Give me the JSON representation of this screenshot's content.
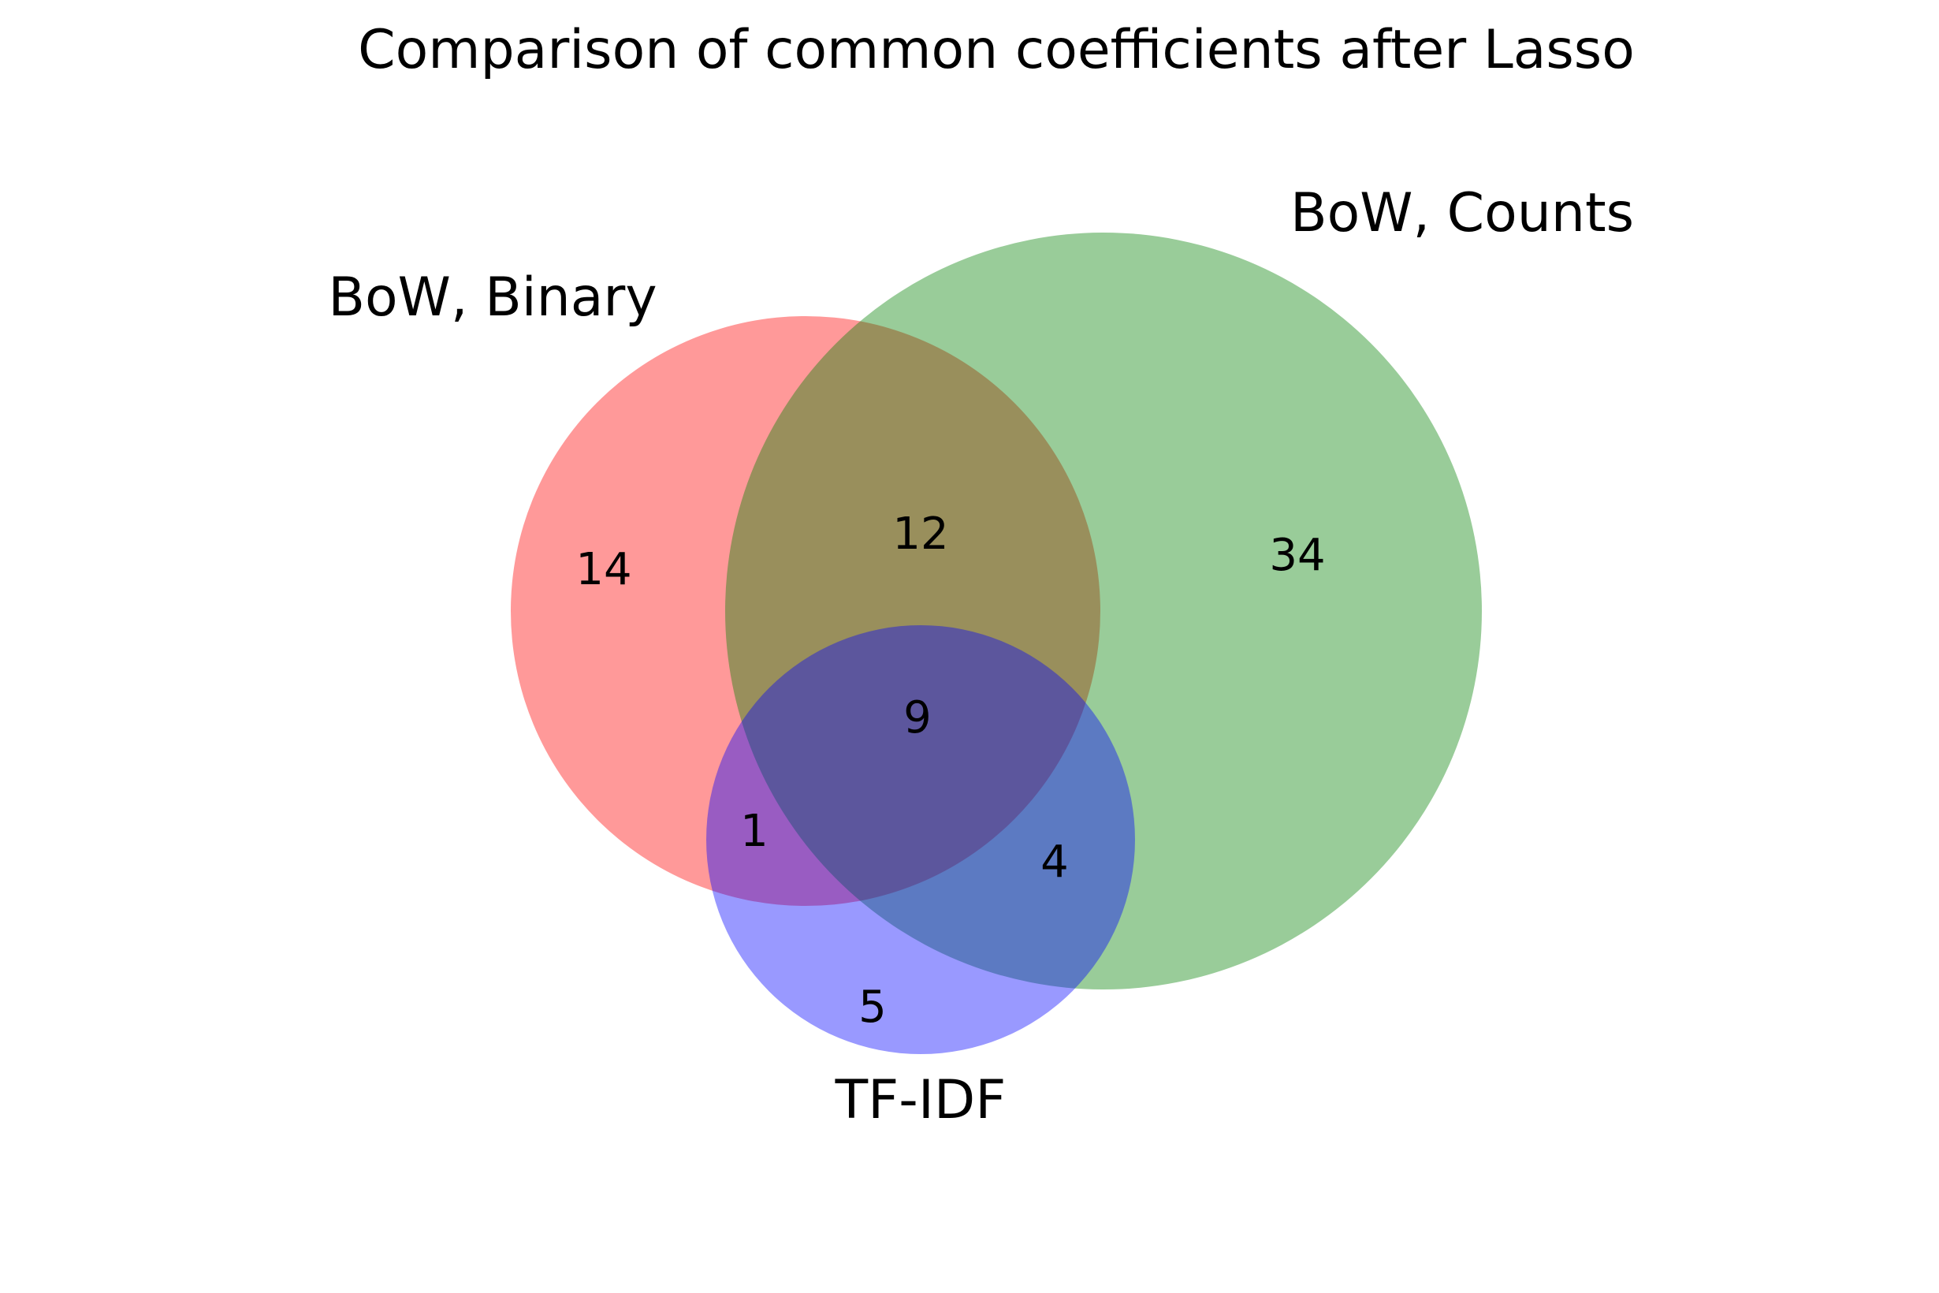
{
  "chart_data": {
    "type": "venn",
    "title": "Comparison of common coefficients after Lasso",
    "sets": [
      {
        "id": "binary",
        "name": "BoW, Binary",
        "color": "#ff0000",
        "alpha": 0.4
      },
      {
        "id": "counts",
        "name": "BoW, Counts",
        "color": "#008000",
        "alpha": 0.4
      },
      {
        "id": "tfidf",
        "name": "TF-IDF",
        "color": "#0000ff",
        "alpha": 0.4
      }
    ],
    "regions": [
      {
        "id": "binary_only",
        "sets": [
          "binary"
        ],
        "value": "14"
      },
      {
        "id": "counts_only",
        "sets": [
          "counts"
        ],
        "value": "34"
      },
      {
        "id": "tfidf_only",
        "sets": [
          "tfidf"
        ],
        "value": "5"
      },
      {
        "id": "binary_counts",
        "sets": [
          "binary",
          "counts"
        ],
        "value": "12"
      },
      {
        "id": "binary_tfidf",
        "sets": [
          "binary",
          "tfidf"
        ],
        "value": "1"
      },
      {
        "id": "counts_tfidf",
        "sets": [
          "counts",
          "tfidf"
        ],
        "value": "4"
      },
      {
        "id": "all_three",
        "sets": [
          "binary",
          "counts",
          "tfidf"
        ],
        "value": "9"
      }
    ]
  }
}
